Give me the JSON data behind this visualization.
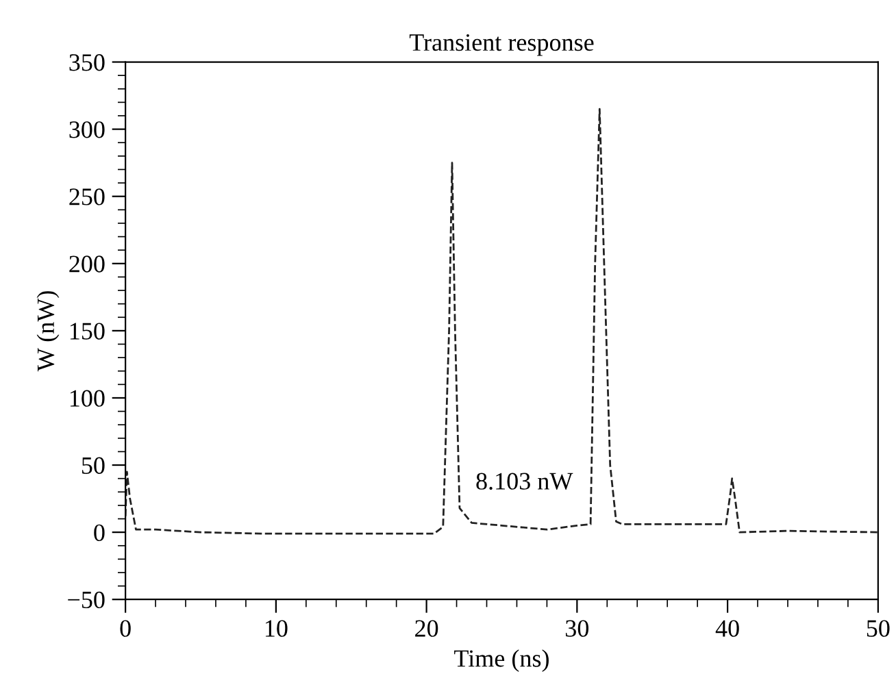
{
  "chart_data": {
    "type": "line",
    "title": "Transient response",
    "xlabel": "Time (ns)",
    "ylabel": "W (nW)",
    "xlim": [
      0,
      50
    ],
    "xticks": [
      0,
      10,
      20,
      30,
      40,
      50
    ],
    "ylim": [
      -50,
      350
    ],
    "yticks": [
      -50,
      0,
      50,
      100,
      150,
      200,
      250,
      300,
      350
    ],
    "grid": false,
    "line_style": "dashed",
    "marker": "none",
    "annotations": [
      "8.103 nW"
    ],
    "series": [
      {
        "color": "#222222",
        "x": [
          0,
          0.1,
          0.3,
          0.7,
          2,
          5,
          9,
          14,
          18,
          20.5,
          21.1,
          21.5,
          21.7,
          21.9,
          22.2,
          23,
          25,
          28,
          30,
          30.9,
          31.2,
          31.5,
          31.8,
          32.2,
          32.6,
          33,
          36,
          39.9,
          40.2,
          40.3,
          40.5,
          40.8,
          44,
          50
        ],
        "values": [
          12,
          45,
          25,
          2,
          2,
          0,
          -1,
          -1,
          -1,
          -1,
          4,
          150,
          275,
          150,
          18,
          7,
          5,
          2,
          5,
          6,
          200,
          315,
          200,
          50,
          8,
          6,
          6,
          6,
          30,
          40,
          25,
          0,
          1,
          0
        ]
      }
    ]
  }
}
